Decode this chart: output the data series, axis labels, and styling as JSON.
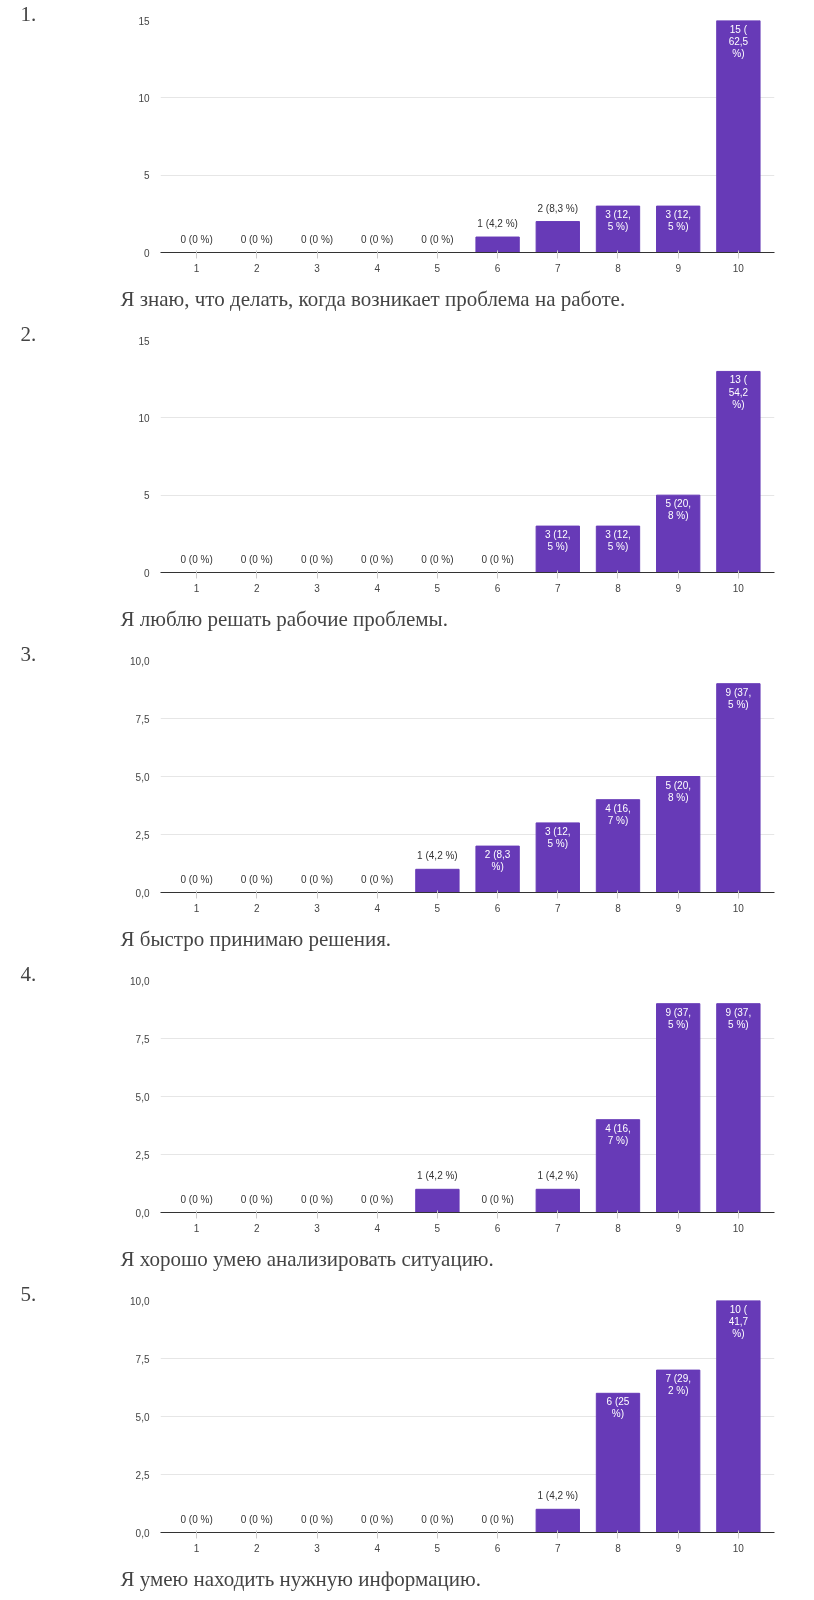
{
  "chart_data": [
    {
      "type": "bar",
      "title": "Я знаю, что делать, когда возникает проблема на работе.",
      "annotations": [
        "1."
      ],
      "categories": [
        "1",
        "2",
        "3",
        "4",
        "5",
        "6",
        "7",
        "8",
        "9",
        "10"
      ],
      "values": [
        0,
        0,
        0,
        0,
        0,
        1,
        2,
        3,
        3,
        15
      ],
      "color": "#673ab7",
      "value_labels": [
        "0 (0 %)",
        "0 (0 %)",
        "0 (0 %)",
        "0 (0 %)",
        "0 (0 %)",
        "1 (4,2 %)",
        "2 (8,3 %)",
        "3 (12,5 %)",
        "3 (12,5 %)",
        "15 (62,5 %)"
      ],
      "ylim": [
        0,
        15
      ],
      "yticks": [
        0,
        5,
        10,
        15
      ],
      "grid": "y",
      "legend": false
    },
    {
      "type": "bar",
      "title": "Я люблю решать рабочие проблемы.",
      "annotations": [
        "2."
      ],
      "categories": [
        "1",
        "2",
        "3",
        "4",
        "5",
        "6",
        "7",
        "8",
        "9",
        "10"
      ],
      "values": [
        0,
        0,
        0,
        0,
        0,
        0,
        3,
        3,
        5,
        13
      ],
      "color": "#673ab7",
      "value_labels": [
        "0 (0 %)",
        "0 (0 %)",
        "0 (0 %)",
        "0 (0 %)",
        "0 (0 %)",
        "0 (0 %)",
        "3 (12,5 %)",
        "3 (12,5 %)",
        "5 (20,8 %)",
        "13 (54,2 %)"
      ],
      "ylim": [
        0,
        15
      ],
      "yticks": [
        0,
        5,
        10,
        15
      ],
      "grid": "y",
      "legend": false
    },
    {
      "type": "bar",
      "title": "Я быстро принимаю решения.",
      "annotations": [
        "3."
      ],
      "categories": [
        "1",
        "2",
        "3",
        "4",
        "5",
        "6",
        "7",
        "8",
        "9",
        "10"
      ],
      "values": [
        0,
        0,
        0,
        0,
        1,
        2,
        3,
        4,
        5,
        9
      ],
      "color": "#673ab7",
      "value_labels": [
        "0 (0 %)",
        "0 (0 %)",
        "0 (0 %)",
        "0 (0 %)",
        "1 (4,2 %)",
        "2 (8,3 %)",
        "3 (12,5 %)",
        "4 (16,7 %)",
        "5 (20,8 %)",
        "9 (37,5 %)"
      ],
      "ylim": [
        0,
        10
      ],
      "yticks": [
        {
          "value": 0,
          "label": "0,0"
        },
        {
          "value": 2.5,
          "label": "2,5"
        },
        {
          "value": 5,
          "label": "5,0"
        },
        {
          "value": 7.5,
          "label": "7,5"
        },
        {
          "value": 10,
          "label": "10,0"
        }
      ],
      "grid": "y",
      "legend": false
    },
    {
      "type": "bar",
      "title": "Я хорошо умею анализировать ситуацию.",
      "annotations": [
        "4."
      ],
      "categories": [
        "1",
        "2",
        "3",
        "4",
        "5",
        "6",
        "7",
        "8",
        "9",
        "10"
      ],
      "values": [
        0,
        0,
        0,
        0,
        1,
        0,
        1,
        4,
        9,
        9
      ],
      "color": "#673ab7",
      "value_labels": [
        "0 (0 %)",
        "0 (0 %)",
        "0 (0 %)",
        "0 (0 %)",
        "1 (4,2 %)",
        "0 (0 %)",
        "1 (4,2 %)",
        "4 (16,7 %)",
        "9 (37,5 %)",
        "9 (37,5 %)"
      ],
      "ylim": [
        0,
        10
      ],
      "yticks": [
        {
          "value": 0,
          "label": "0,0"
        },
        {
          "value": 2.5,
          "label": "2,5"
        },
        {
          "value": 5,
          "label": "5,0"
        },
        {
          "value": 7.5,
          "label": "7,5"
        },
        {
          "value": 10,
          "label": "10,0"
        }
      ],
      "grid": "y",
      "legend": false
    },
    {
      "type": "bar",
      "title": "Я умею находить нужную информацию.",
      "annotations": [
        "5."
      ],
      "categories": [
        "1",
        "2",
        "3",
        "4",
        "5",
        "6",
        "7",
        "8",
        "9",
        "10"
      ],
      "values": [
        0,
        0,
        0,
        0,
        0,
        0,
        1,
        6,
        7,
        10
      ],
      "color": "#673ab7",
      "value_labels": [
        "0 (0 %)",
        "0 (0 %)",
        "0 (0 %)",
        "0 (0 %)",
        "0 (0 %)",
        "0 (0 %)",
        "1 (4,2 %)",
        "6 (25 %)",
        "7 (29,2 %)",
        "10 (41,7 %)"
      ],
      "ylim": [
        0,
        10
      ],
      "yticks": [
        {
          "value": 0,
          "label": "0,0"
        },
        {
          "value": 2.5,
          "label": "2,5"
        },
        {
          "value": 5,
          "label": "5,0"
        },
        {
          "value": 7.5,
          "label": "7,5"
        },
        {
          "value": 10,
          "label": "10,0"
        }
      ],
      "grid": "y",
      "legend": false
    }
  ]
}
